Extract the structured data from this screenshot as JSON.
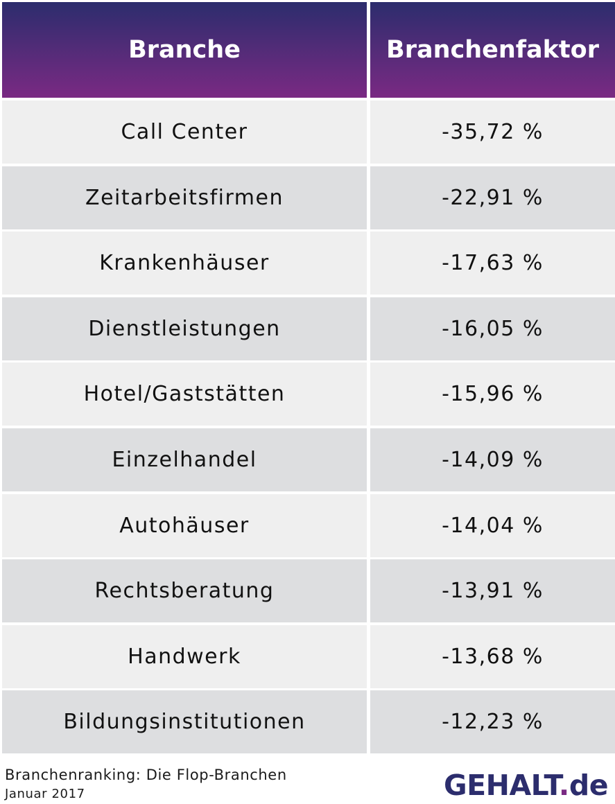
{
  "chart_data": {
    "type": "table",
    "columns": [
      "Branche",
      "Branchenfaktor"
    ],
    "rows": [
      {
        "branche": "Call Center",
        "faktor": "-35,72 %"
      },
      {
        "branche": "Zeitarbeitsfirmen",
        "faktor": "-22,91 %"
      },
      {
        "branche": "Krankenhäuser",
        "faktor": "-17,63 %"
      },
      {
        "branche": "Dienstleistungen",
        "faktor": "-16,05 %"
      },
      {
        "branche": "Hotel/Gaststätten",
        "faktor": "-15,96 %"
      },
      {
        "branche": "Einzelhandel",
        "faktor": "-14,09 %"
      },
      {
        "branche": "Autohäuser",
        "faktor": "-14,04 %"
      },
      {
        "branche": "Rechtsberatung",
        "faktor": "-13,91 %"
      },
      {
        "branche": "Handwerk",
        "faktor": "-13,68 %"
      },
      {
        "branche": "Bildungsinstitutionen",
        "faktor": "-12,23 %"
      }
    ],
    "values": [
      -35.72,
      -22.91,
      -17.63,
      -16.05,
      -15.96,
      -14.09,
      -14.04,
      -13.91,
      -13.68,
      -12.23
    ]
  },
  "footer": {
    "caption": "Branchenranking: Die Flop-Branchen",
    "date": "Januar 2017"
  },
  "logo": {
    "main": "GEHALT",
    "dot": ".",
    "tld": "de"
  },
  "colors": {
    "header_top": "#2c2d6d",
    "header_bottom": "#7a2a83",
    "row_light": "#efefef",
    "row_dark": "#dddee0"
  }
}
